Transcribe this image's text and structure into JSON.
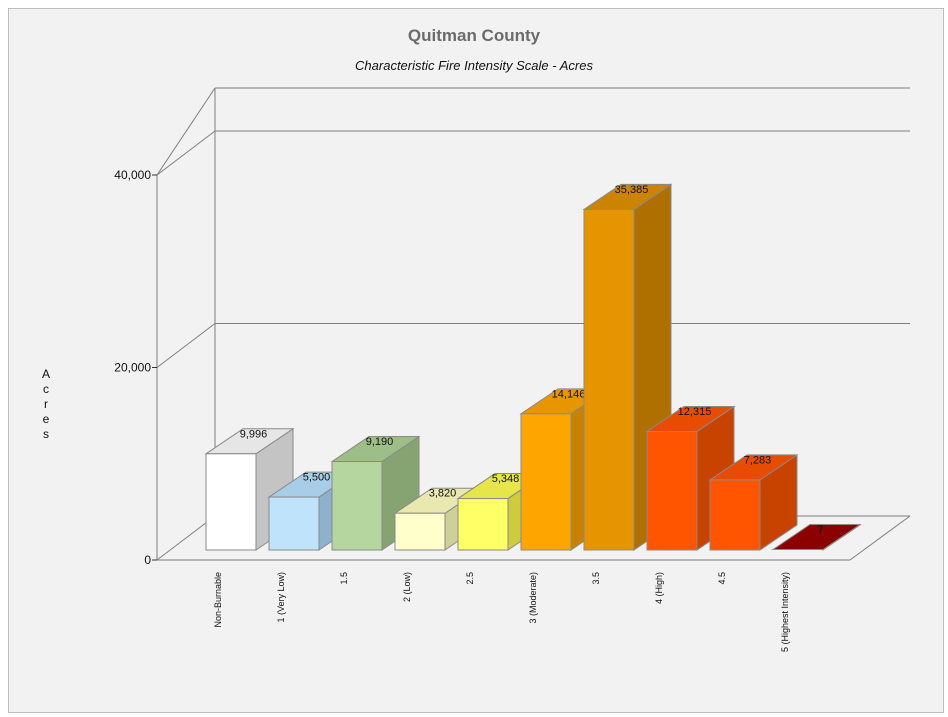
{
  "chart_data": {
    "type": "bar",
    "title": "Quitman County",
    "subtitle": "Characteristic Fire Intensity Scale - Acres",
    "ylabel": "Acres",
    "xlabel": "",
    "ylim": [
      0,
      40000
    ],
    "yticks": [
      0,
      20000,
      40000
    ],
    "ytick_labels": [
      "0",
      "20,000",
      "40,000"
    ],
    "categories": [
      "Non-Burnable",
      "1 (Very Low)",
      "1.5",
      "2 (Low)",
      "2.5",
      "3 (Moderate)",
      "3.5",
      "4 (High)",
      "4.5",
      "5 (Highest Intensity)"
    ],
    "values": [
      9996,
      5500,
      9190,
      3820,
      5348,
      14146,
      35385,
      12315,
      7283,
      7
    ],
    "value_labels": [
      "9,996",
      "5,500",
      "9,190",
      "3,820",
      "5,348",
      "14,146",
      "35,385",
      "12,315",
      "7,283",
      "7"
    ],
    "bar_colors": [
      {
        "front": "#ffffff",
        "top": "#e6e6e6",
        "side": "#c4c4c4"
      },
      {
        "front": "#bfe3fb",
        "top": "#a8cde8",
        "side": "#8fb1cc"
      },
      {
        "front": "#b5d69e",
        "top": "#9dbf87",
        "side": "#85a472"
      },
      {
        "front": "#ffffcc",
        "top": "#e8e8b0",
        "side": "#cfcf98"
      },
      {
        "front": "#ffff66",
        "top": "#e6e64a",
        "side": "#cccc3c"
      },
      {
        "front": "#ffa500",
        "top": "#e89600",
        "side": "#c98200"
      },
      {
        "front": "#e69500",
        "top": "#cc8400",
        "side": "#b07000"
      },
      {
        "front": "#ff5500",
        "top": "#e84c00",
        "side": "#c84200"
      },
      {
        "front": "#ff5500",
        "top": "#e84c00",
        "side": "#c84200"
      },
      {
        "front": "#8b0000",
        "top": "#a00000",
        "side": "#6b0000"
      }
    ],
    "grid": true,
    "legend": "none"
  }
}
